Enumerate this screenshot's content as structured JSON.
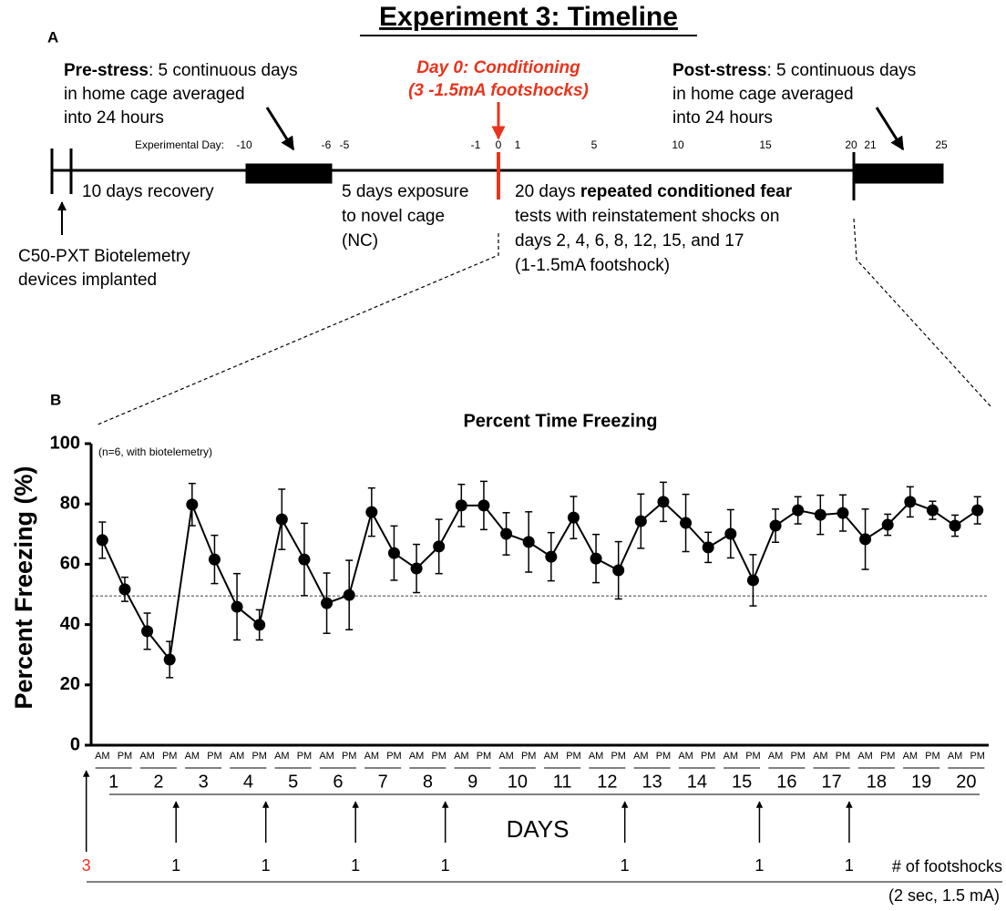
{
  "title": "Experiment 3: Timeline",
  "timeline": {
    "label": "A",
    "pre_stress_bold": "Pre-stress",
    "pre_stress_lines": [
      ": 5 continuous days",
      "in home cage averaged",
      "into 24 hours"
    ],
    "conditioning_lines": [
      "Day 0: Conditioning",
      "(3 -1.5mA footshocks)"
    ],
    "post_stress_bold": "Post-stress",
    "post_stress_lines": [
      ": 5 continuous days",
      "in home cage averaged",
      "into 24 hours"
    ],
    "day_label": "Experimental Day:",
    "day_ticks": [
      "-10",
      "-6",
      "-5",
      "-1",
      "0",
      "1",
      "5",
      "10",
      "15",
      "20",
      "21",
      "25"
    ],
    "recovery": "10 days recovery",
    "nc_lines": [
      "5 days exposure",
      "to novel cage",
      "(NC)"
    ],
    "repeated_first": "20 days ",
    "repeated_bold": "repeated conditioned fear",
    "repeated_lines": [
      "tests with  reinstatement shocks on",
      "days 2, 4, 6, 8, 12, 15, and 17",
      "(1-1.5mA footshock)"
    ],
    "implant_lines": [
      "C50-PXT Biotelemetry",
      "devices implanted"
    ]
  },
  "chart_data": {
    "type": "line",
    "label": "B",
    "title": "Percent Time Freezing",
    "ylabel": "Percent Freezing (%)",
    "annotation": "(n=6, with biotelemetry)",
    "ylim": [
      0,
      100
    ],
    "yticks": [
      0,
      20,
      40,
      60,
      80,
      100
    ],
    "reference_line": 49.5,
    "color": "#000000",
    "categories": [
      "AM",
      "PM",
      "AM",
      "PM",
      "AM",
      "PM",
      "AM",
      "PM",
      "AM",
      "PM",
      "AM",
      "PM",
      "AM",
      "PM",
      "AM",
      "PM",
      "AM",
      "PM",
      "AM",
      "PM",
      "AM",
      "PM",
      "AM",
      "PM",
      "AM",
      "PM",
      "AM",
      "PM",
      "AM",
      "PM",
      "AM",
      "PM",
      "AM",
      "PM",
      "AM",
      "PM",
      "AM",
      "PM",
      "AM",
      "PM"
    ],
    "days": [
      "1",
      "2",
      "3",
      "4",
      "5",
      "6",
      "7",
      "8",
      "9",
      "10",
      "11",
      "12",
      "13",
      "14",
      "15",
      "16",
      "17",
      "18",
      "19",
      "20"
    ],
    "days_label": "DAYS",
    "values": [
      68,
      51.7,
      37.8,
      28.4,
      79.8,
      61.6,
      45.9,
      39.9,
      74.9,
      61.6,
      47.1,
      49.8,
      77.3,
      63.7,
      58.6,
      65.9,
      79.5,
      79.5,
      70.1,
      67.4,
      62.5,
      75.5,
      61.9,
      58,
      74.3,
      80.7,
      73.7,
      65.6,
      70.1,
      54.7,
      72.8,
      77.9,
      76.4,
      77,
      68.3,
      73.1,
      80.7,
      77.9,
      72.8,
      77.9
    ],
    "errors": [
      6,
      4,
      6,
      6,
      7,
      8,
      11,
      5,
      10,
      12,
      10,
      11.5,
      8,
      9,
      8,
      9,
      7,
      8,
      7,
      10,
      8,
      7,
      8,
      9.5,
      9,
      6.5,
      9.5,
      5,
      8,
      8.5,
      5.5,
      4.5,
      6.5,
      6,
      10,
      3.5,
      5,
      3,
      3.5,
      4.5
    ],
    "footshocks": [
      {
        "day": 0,
        "count": 3
      },
      {
        "day": 2,
        "count": 1
      },
      {
        "day": 4,
        "count": 1
      },
      {
        "day": 6,
        "count": 1
      },
      {
        "day": 8,
        "count": 1
      },
      {
        "day": 12,
        "count": 1
      },
      {
        "day": 15,
        "count": 1
      },
      {
        "day": 17,
        "count": 1
      }
    ],
    "footshock_label": "# of footshocks",
    "footshock_note": "(2 sec, 1.5 mA)"
  }
}
